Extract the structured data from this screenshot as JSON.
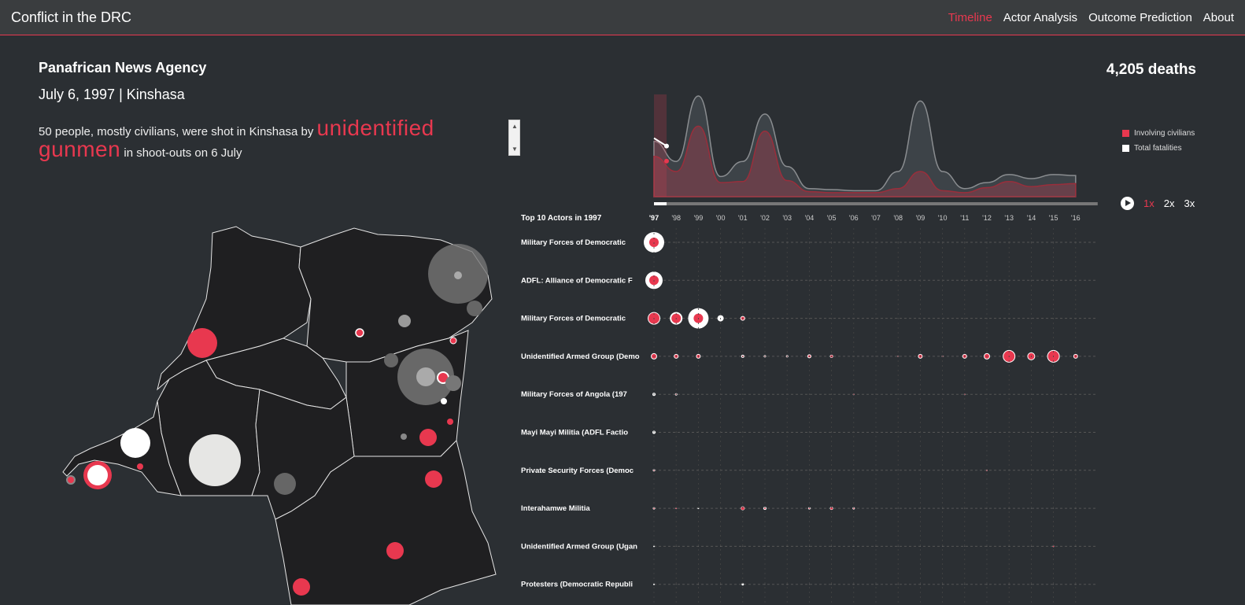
{
  "app": {
    "title": "Conflict in the DRC",
    "nav": [
      "Timeline",
      "Actor Analysis",
      "Outcome Prediction",
      "About"
    ],
    "active_nav": "Timeline"
  },
  "event": {
    "source": "Panafrican News Agency",
    "dateline": "July 6, 1997 | Kinshasa",
    "text_before": "50 people, mostly civilians, were shot in Kinshasa by ",
    "highlight": "unidentified gunmen",
    "text_after": " in shoot-outs on 6 July"
  },
  "totals": {
    "deaths_label": "4,205 deaths"
  },
  "colors": {
    "accent": "#e8384f",
    "background": "#2b2f33",
    "map_fill": "#1f1f21",
    "total": "#ffffff"
  },
  "legend": [
    {
      "label": "Involving civilians",
      "color": "#e8384f"
    },
    {
      "label": "Total fatalities",
      "color": "#ffffff"
    }
  ],
  "playback": {
    "speeds": [
      "1x",
      "2x",
      "3x"
    ],
    "active": "1x",
    "play_icon": "play-icon"
  },
  "chart_data": {
    "type": "area",
    "x": [
      "'97",
      "'98",
      "'99",
      "'00",
      "'01",
      "'02",
      "'03",
      "'04",
      "'05",
      "'06",
      "'07",
      "'08",
      "'09",
      "'10",
      "'11",
      "'12",
      "'13",
      "'14",
      "'15",
      "'16"
    ],
    "series": [
      {
        "name": "Total fatalities",
        "values": [
          55,
          35,
          100,
          20,
          35,
          82,
          30,
          8,
          7,
          6,
          6,
          25,
          95,
          25,
          8,
          14,
          22,
          18,
          22,
          21
        ]
      },
      {
        "name": "Involving civilians",
        "values": [
          40,
          25,
          70,
          14,
          15,
          65,
          16,
          5,
          4,
          4,
          4,
          8,
          25,
          6,
          4,
          9,
          15,
          10,
          12,
          13
        ]
      }
    ],
    "current_index": 0
  },
  "actors": {
    "title": "Top 10 Actors in 1997",
    "rows": [
      {
        "label": "Military Forces of Democratic",
        "civ": [
          6,
          0,
          0,
          0,
          0,
          0,
          0,
          0,
          0,
          0,
          0,
          0,
          0,
          0,
          0,
          0,
          0,
          0,
          0,
          0
        ],
        "tot": [
          13,
          0,
          0,
          0,
          0,
          0,
          0,
          0,
          0,
          0,
          0,
          0,
          0,
          0,
          0,
          0,
          0,
          0,
          0,
          0
        ]
      },
      {
        "label": "ADFL: Alliance of Democratic F",
        "civ": [
          6,
          0,
          0,
          0,
          0,
          0,
          0,
          0,
          0,
          0,
          0,
          0,
          0,
          0,
          0,
          0,
          0,
          0,
          0,
          0
        ],
        "tot": [
          11,
          0,
          0,
          0,
          0,
          0,
          0,
          0,
          0,
          0,
          0,
          0,
          0,
          0,
          0,
          0,
          0,
          0,
          0,
          0
        ]
      },
      {
        "label": "Military Forces of Democratic",
        "civ": [
          8,
          6,
          6,
          0,
          3,
          0,
          0,
          0,
          0,
          0,
          0,
          0,
          0,
          0,
          0,
          0,
          0,
          0,
          0,
          0
        ],
        "tot": [
          8,
          8,
          13,
          4,
          3,
          0,
          0,
          0,
          0,
          0,
          0,
          0,
          0,
          0,
          0,
          0,
          0,
          0,
          0,
          0
        ]
      },
      {
        "label": "Unidentified Armed Group (Demo",
        "civ": [
          4,
          2,
          3,
          0,
          2,
          1.5,
          1.5,
          2.5,
          1.5,
          0,
          0,
          1,
          3,
          1,
          3,
          4,
          7,
          5,
          7,
          3
        ],
        "tot": [
          4,
          3,
          3,
          0,
          2,
          1.5,
          1.5,
          2.5,
          2,
          0,
          0,
          1,
          3,
          1,
          3,
          4,
          8,
          5,
          8,
          3
        ]
      },
      {
        "label": "Military Forces of Angola (197",
        "civ": [
          0,
          1.5,
          0,
          0,
          0,
          0,
          0,
          0,
          0,
          1,
          0,
          0,
          0,
          0,
          1,
          0,
          0,
          0,
          0,
          0
        ],
        "tot": [
          2,
          1.5,
          0,
          0,
          0,
          0,
          0,
          0,
          0,
          1,
          0,
          0,
          0,
          0,
          1,
          0,
          0,
          0,
          0,
          0
        ]
      },
      {
        "label": "Mayi Mayi Militia (ADFL Factio",
        "civ": [
          0,
          0,
          0,
          0,
          0,
          0,
          0,
          0,
          0,
          0,
          0,
          0,
          0,
          0,
          0,
          0,
          0,
          0,
          0,
          0
        ],
        "tot": [
          2,
          0,
          0,
          0,
          0,
          0,
          0,
          0,
          0,
          0,
          0,
          0,
          0,
          0,
          0,
          0,
          0,
          0,
          0,
          0
        ]
      },
      {
        "label": "Private Security Forces (Democ",
        "civ": [
          1.5,
          0,
          0,
          0,
          0,
          0,
          0,
          0,
          0,
          0,
          0,
          0,
          0,
          0,
          0,
          1,
          0,
          0,
          0,
          0
        ],
        "tot": [
          1.5,
          0,
          0,
          0,
          0,
          0,
          0,
          0,
          0,
          0,
          0,
          0,
          0,
          0,
          0,
          1,
          0,
          0,
          0,
          0
        ]
      },
      {
        "label": "Interahamwe Militia",
        "civ": [
          1.5,
          1,
          0,
          0,
          2,
          2,
          0,
          1.5,
          1.5,
          1.5,
          0,
          0,
          0,
          0,
          0,
          0,
          0,
          0,
          0,
          0
        ],
        "tot": [
          1.5,
          1,
          1,
          0,
          2.5,
          2,
          0,
          1.5,
          2,
          1.5,
          0,
          0,
          0,
          0,
          0,
          0,
          0,
          0,
          0,
          0
        ]
      },
      {
        "label": "Unidentified Armed Group (Ugan",
        "civ": [
          0,
          0,
          0,
          0,
          0,
          0,
          0,
          0,
          0,
          0,
          0,
          0,
          0,
          0,
          0,
          0,
          0,
          0,
          1,
          0
        ],
        "tot": [
          1,
          0,
          0,
          0,
          0,
          0,
          0,
          0,
          0,
          0,
          0,
          0,
          0,
          0,
          0,
          0,
          0,
          0,
          1,
          0
        ]
      },
      {
        "label": "Protesters (Democratic Republi",
        "civ": [
          0,
          0,
          0,
          0,
          0,
          0,
          0,
          0,
          0,
          0,
          0,
          0,
          0,
          0,
          0,
          0,
          0,
          0,
          0,
          0
        ],
        "tot": [
          1,
          0,
          0,
          0,
          1.5,
          0,
          0,
          0,
          0,
          0,
          0,
          0,
          0,
          0,
          0,
          0,
          0,
          0,
          0,
          0
        ]
      }
    ]
  }
}
